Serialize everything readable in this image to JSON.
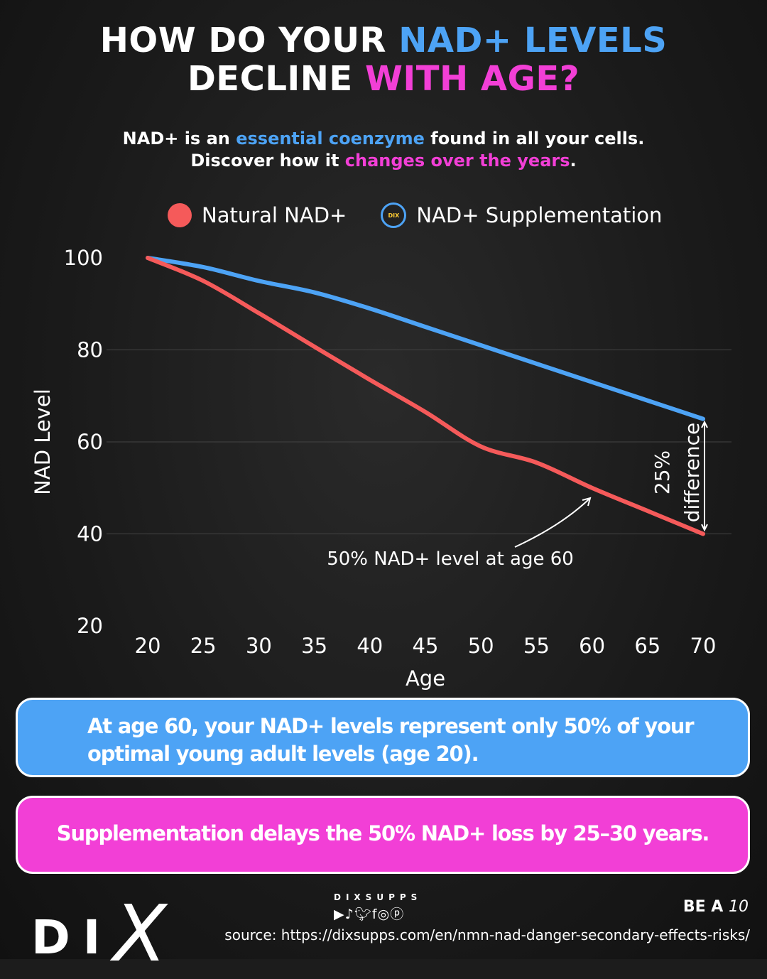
{
  "header": {
    "title_l1a": "HOW DO YOUR ",
    "title_l1b": "NAD+ LEVELS",
    "title_l2a": "DECLINE ",
    "title_l2b": "WITH AGE?",
    "sub_l1a": "NAD+ is an ",
    "sub_l1b": "essential coenzyme",
    "sub_l1c": " found in all your cells.",
    "sub_l2a": "Discover how it ",
    "sub_l2b": "changes over the years",
    "sub_l2c": "."
  },
  "chart_data": {
    "type": "line",
    "xlabel": "Age",
    "ylabel": "NAD Level",
    "x": [
      20,
      25,
      30,
      35,
      40,
      45,
      50,
      55,
      60,
      65,
      70
    ],
    "xticks": [
      "20",
      "25",
      "30",
      "35",
      "40",
      "45",
      "50",
      "55",
      "60",
      "65",
      "70"
    ],
    "yticks": [
      "100",
      "80",
      "60",
      "40",
      "20"
    ],
    "xlim": [
      20,
      70
    ],
    "ylim": [
      20,
      100
    ],
    "grid": "horizontal",
    "legend_placement": "top",
    "series": [
      {
        "name": "Natural NAD+",
        "color": "#f55a5a",
        "values": [
          100,
          95,
          88,
          80.7,
          73.5,
          66.5,
          59,
          55.5,
          50,
          45,
          40
        ]
      },
      {
        "name": "NAD+ Supplementation",
        "color": "#4da3f5",
        "values": [
          100,
          98,
          95,
          92.5,
          89,
          85,
          81,
          77,
          73,
          69,
          65
        ]
      }
    ],
    "annotations": {
      "age60": "50% NAD+ level at age 60",
      "diff_a": "25%",
      "diff_b": "difference"
    }
  },
  "callouts": {
    "blue": "At age 60, your NAD+ levels represent only 50% of your optimal young adult levels (age 20).",
    "pink": "Supplementation delays the 50% NAD+ loss by 25–30 years."
  },
  "footer": {
    "logo": "DIX",
    "brand": "DIXSUPPS",
    "social_icons": [
      "youtube-icon",
      "tiktok-icon",
      "twitter-icon",
      "facebook-icon",
      "instagram-icon",
      "pinterest-icon"
    ],
    "tagline_a": "BE A ",
    "tagline_b": "10",
    "source": "source: https://dixsupps.com/en/nmn-nad-danger-secondary-effects-risks/"
  }
}
